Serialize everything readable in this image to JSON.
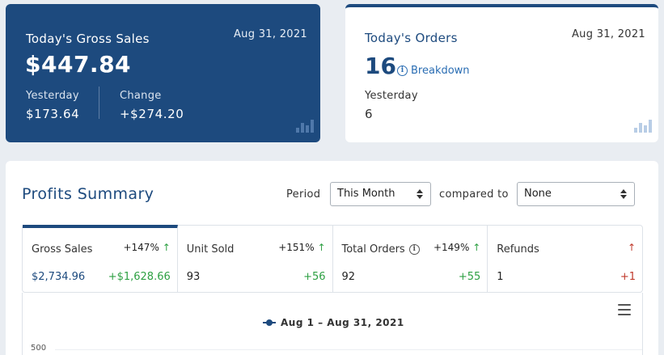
{
  "gross_sales_card": {
    "title": "Today's Gross Sales",
    "date": "Aug 31, 2021",
    "value": "$447.84",
    "yesterday_label": "Yesterday",
    "yesterday_value": "$173.64",
    "change_label": "Change",
    "change_value": "+$274.20",
    "icon": "bar-chart-icon"
  },
  "orders_card": {
    "title": "Today's Orders",
    "date": "Aug 31, 2021",
    "value": "16",
    "breakdown_label": "Breakdown",
    "yesterday_label": "Yesterday",
    "yesterday_value": "6",
    "icon": "bar-chart-icon"
  },
  "profits_summary": {
    "title": "Profits Summary",
    "period_label": "Period",
    "period_value": "This Month",
    "compared_label": "compared to",
    "compared_value": "None",
    "metrics": [
      {
        "name": "Gross Sales",
        "change": "+147%",
        "direction": "up",
        "value": "$2,734.96",
        "diff": "+$1,628.66",
        "has_info": false
      },
      {
        "name": "Unit Sold",
        "change": "+151%",
        "direction": "up",
        "value": "93",
        "diff": "+56",
        "has_info": false
      },
      {
        "name": "Total Orders",
        "change": "+149%",
        "direction": "up",
        "value": "92",
        "diff": "+55",
        "has_info": true
      },
      {
        "name": "Refunds",
        "change": "",
        "direction": "up-red",
        "value": "1",
        "diff": "+1",
        "has_info": false
      }
    ],
    "chart": {
      "legend": "Aug 1 – Aug 31, 2021",
      "y_tick": "500"
    }
  },
  "colors": {
    "primary": "#1d4a7e",
    "positive": "#2ea043",
    "negative": "#c0392b",
    "link": "#2a6db3"
  }
}
